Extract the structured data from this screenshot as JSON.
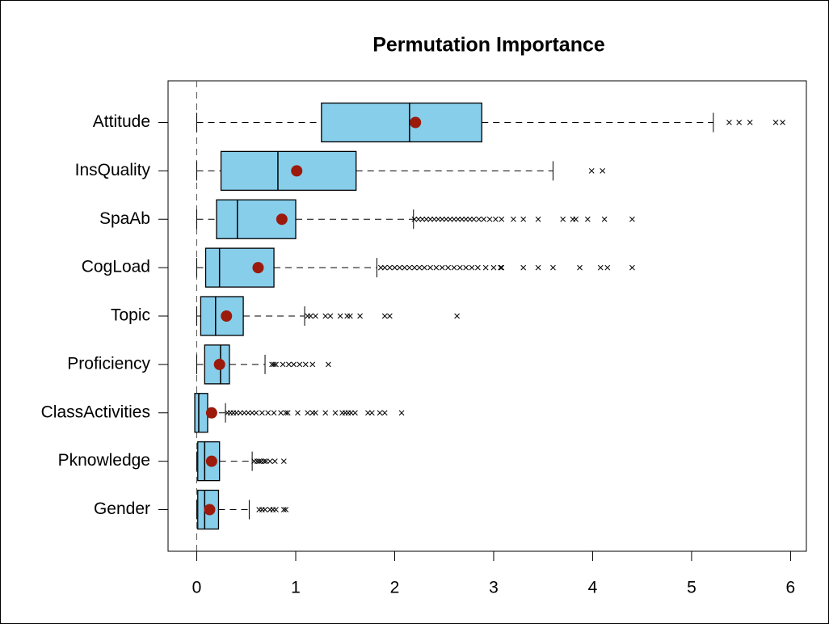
{
  "chart_data": {
    "type": "boxplot",
    "title": "Permutation Importance",
    "categories": [
      "Attitude",
      "InsQuality",
      "SpaAb",
      "CogLoad",
      "Topic",
      "Proficiency",
      "ClassActivities",
      "Pknowledge",
      "Gender"
    ],
    "whisker_low": [
      0,
      0,
      0,
      0,
      0,
      0,
      -0.02,
      0,
      0
    ],
    "q1": [
      1.26,
      0.245,
      0.2,
      0.09,
      0.04,
      0.08,
      -0.02,
      0.01,
      0.01
    ],
    "median": [
      2.15,
      0.82,
      0.41,
      0.23,
      0.19,
      0.24,
      0.02,
      0.08,
      0.08
    ],
    "q3": [
      2.88,
      1.61,
      1.0,
      0.78,
      0.47,
      0.33,
      0.11,
      0.23,
      0.22
    ],
    "whisker_high": [
      5.22,
      3.6,
      2.19,
      1.82,
      1.09,
      0.69,
      0.29,
      0.56,
      0.53
    ],
    "means": [
      2.21,
      1.01,
      0.86,
      0.62,
      0.3,
      0.23,
      0.15,
      0.15,
      0.13
    ],
    "outliers": [
      [
        5.38,
        5.48,
        5.59,
        5.85,
        5.92
      ],
      [
        3.99,
        4.1
      ],
      [
        2.2,
        2.24,
        2.28,
        2.32,
        2.36,
        2.4,
        2.44,
        2.48,
        2.52,
        2.56,
        2.6,
        2.64,
        2.68,
        2.72,
        2.76,
        2.8,
        2.85,
        2.9,
        2.96,
        3.02,
        3.08,
        3.2,
        3.3,
        3.45,
        3.7,
        3.8,
        3.83,
        3.95,
        4.12,
        4.4
      ],
      [
        1.86,
        1.9,
        1.95,
        2.0,
        2.05,
        2.1,
        2.15,
        2.2,
        2.25,
        2.3,
        2.36,
        2.42,
        2.48,
        2.54,
        2.6,
        2.66,
        2.72,
        2.78,
        2.84,
        2.92,
        3.0,
        3.07,
        3.08,
        3.3,
        3.45,
        3.6,
        3.87,
        4.08,
        4.15,
        4.4
      ],
      [
        1.12,
        1.15,
        1.2,
        1.3,
        1.35,
        1.45,
        1.52,
        1.55,
        1.65,
        1.9,
        1.95,
        2.63
      ],
      [
        0.76,
        0.78,
        0.8,
        0.87,
        0.93,
        0.98,
        1.04,
        1.1,
        1.17,
        1.33
      ],
      [
        0.31,
        0.34,
        0.37,
        0.4,
        0.44,
        0.48,
        0.52,
        0.56,
        0.6,
        0.66,
        0.72,
        0.78,
        0.85,
        0.9,
        0.92,
        1.02,
        1.12,
        1.17,
        1.2,
        1.3,
        1.4,
        1.47,
        1.5,
        1.53,
        1.56,
        1.6,
        1.73,
        1.77,
        1.85,
        1.9,
        2.07
      ],
      [
        0.58,
        0.61,
        0.63,
        0.65,
        0.68,
        0.7,
        0.74,
        0.79,
        0.88
      ],
      [
        0.63,
        0.66,
        0.69,
        0.74,
        0.77,
        0.8,
        0.88,
        0.9
      ]
    ],
    "box_color": "#87ceeb",
    "mean_color": "#9b1a0c",
    "reference_line": 0,
    "xlim": [
      -0.29,
      6.16
    ],
    "xticks": [
      0,
      1,
      2,
      3,
      4,
      5,
      6
    ]
  }
}
